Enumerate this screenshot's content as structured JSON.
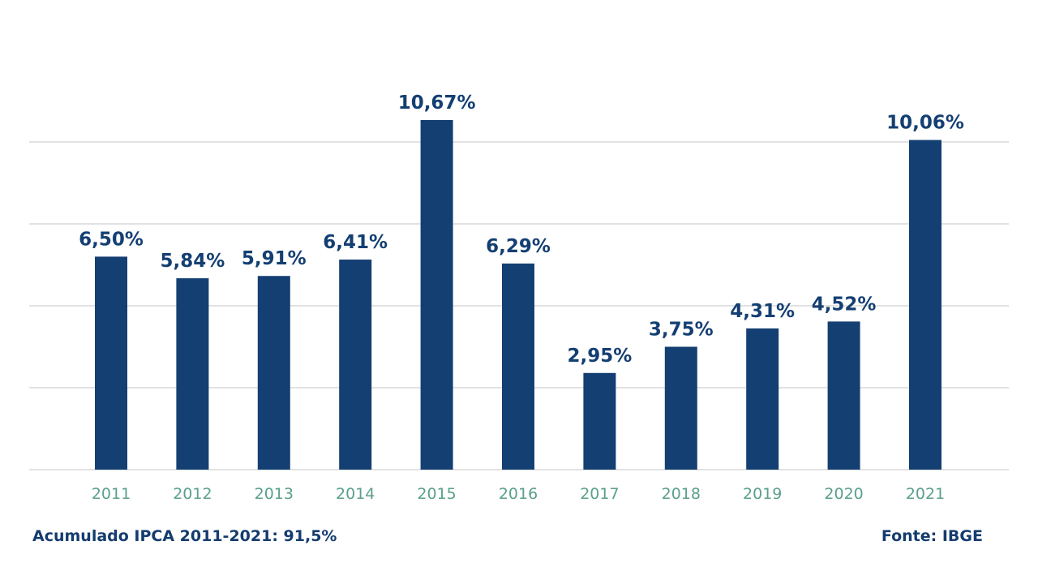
{
  "chart_data": {
    "type": "bar",
    "title": "",
    "xlabel": "",
    "ylabel": "",
    "categories": [
      "2011",
      "2012",
      "2013",
      "2014",
      "2015",
      "2016",
      "2017",
      "2018",
      "2019",
      "2020",
      "2021"
    ],
    "values": [
      6.5,
      5.84,
      5.91,
      6.41,
      10.67,
      6.29,
      2.95,
      3.75,
      4.31,
      4.52,
      10.06
    ],
    "value_labels": [
      "6,50%",
      "5,84%",
      "5,91%",
      "6,41%",
      "10,67%",
      "6,29%",
      "2,95%",
      "3,75%",
      "4,31%",
      "4,52%",
      "10,06%"
    ],
    "ylim": [
      0,
      10
    ],
    "gridlines": [
      0,
      2.5,
      5,
      7.5,
      10
    ],
    "grid": true,
    "y_tick_labels_shown": false,
    "legend": "none"
  },
  "colors": {
    "bar": "#143f72",
    "value_label": "#143f72",
    "category_label": "#5aa08c",
    "grid": "#d9d9d9",
    "footer": "#143c6e"
  },
  "footer": {
    "summary": "Acumulado IPCA 2011-2021: 91,5%",
    "source": "Fonte: IBGE"
  }
}
